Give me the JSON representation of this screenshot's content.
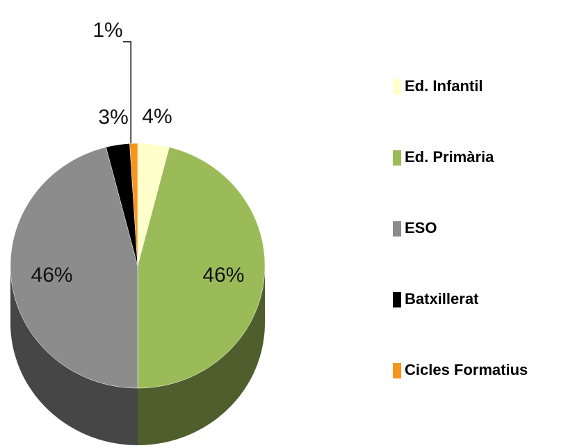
{
  "chart_data": {
    "type": "pie3d",
    "categories": [
      "Ed. Infantil",
      "Ed. Primària",
      "ESO",
      "Batxillerat",
      "Cicles Formatius"
    ],
    "values": [
      4,
      46,
      46,
      3,
      1
    ],
    "value_labels": [
      "4%",
      "46%",
      "46%",
      "3%",
      "1%"
    ],
    "colors": [
      "#ffffcc",
      "#9bbb59",
      "#8c8c8c",
      "#000000",
      "#f7941d"
    ],
    "legend": "right"
  }
}
